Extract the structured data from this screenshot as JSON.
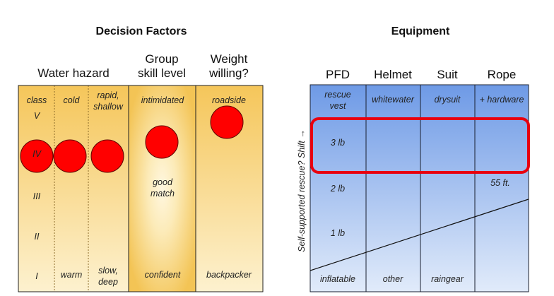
{
  "left": {
    "title": "Decision Factors",
    "headers": {
      "water": "Water hazard",
      "group1": "Group",
      "group2": "skill level",
      "weight1": "Weight",
      "weight2": "willing?"
    },
    "class_col": {
      "top": "class",
      "levels": [
        "V",
        "IV",
        "III",
        "II",
        "I"
      ]
    },
    "cold_col": {
      "top": "cold",
      "bottom": "warm"
    },
    "rapid_col": {
      "top1": "rapid,",
      "top2": "shallow",
      "bottom1": "slow,",
      "bottom2": "deep"
    },
    "group_col": {
      "top": "intimidated",
      "mid1": "good",
      "mid2": "match",
      "bottom": "confident"
    },
    "weight_col": {
      "top": "roadside",
      "bottom": "backpacker"
    }
  },
  "right": {
    "title": "Equipment",
    "headers": [
      "PFD",
      "Helmet",
      "Suit",
      "Rope"
    ],
    "axis_label": "Self-supported rescue? Shift →",
    "pfd": {
      "top1": "rescue",
      "top2": "vest",
      "weights": [
        "3 lb",
        "2 lb",
        "1 lb"
      ],
      "bottom": "inflatable"
    },
    "helmet": {
      "top": "whitewater",
      "bottom": "other"
    },
    "suit": {
      "top": "drysuit",
      "bottom": "raingear"
    },
    "rope": {
      "top": "+ hardware",
      "length": "55 ft."
    }
  },
  "colors": {
    "marker": "#ff0000",
    "highlight": "#e8000f",
    "orange": "#f5c75a",
    "blue": "#6f9be6"
  }
}
